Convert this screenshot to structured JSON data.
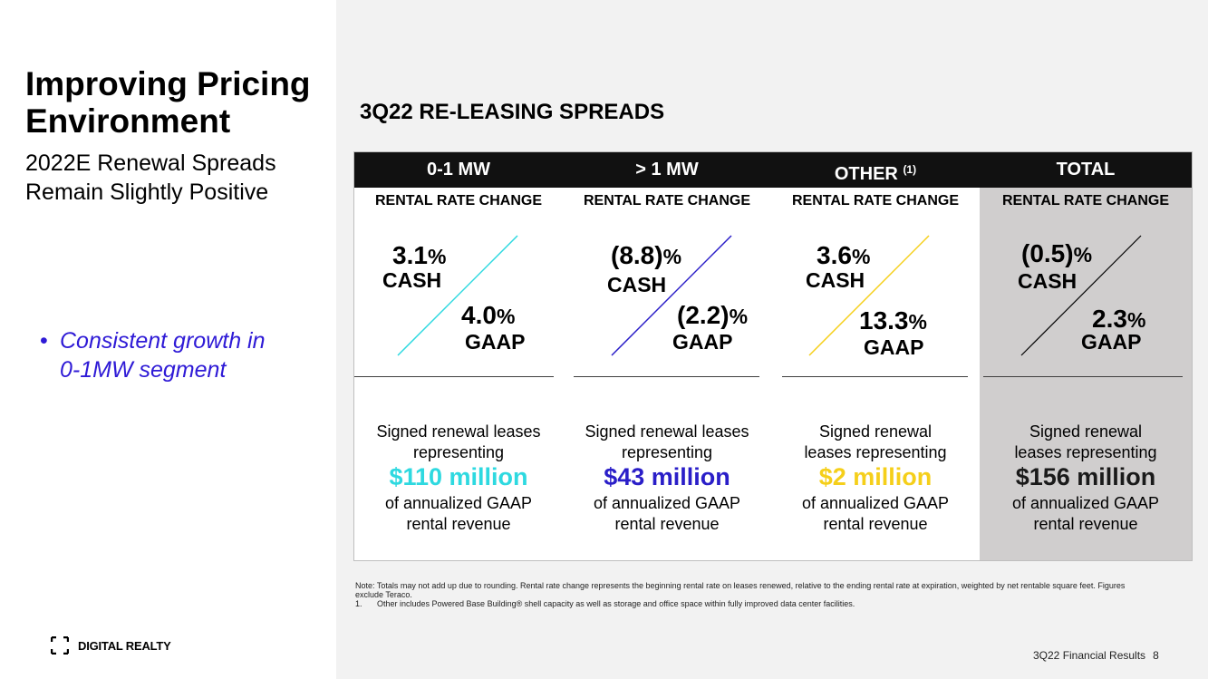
{
  "left": {
    "title_line1": "Improving Pricing",
    "title_line2": "Environment",
    "subtitle_line1": "2022E Renewal Spreads",
    "subtitle_line2": "Remain Slightly Positive",
    "bullet_marker": "•",
    "bullet_line1": "Consistent growth in",
    "bullet_line2": "0-1MW segment"
  },
  "logo": {
    "text": "DIGITAL REALTY",
    "mark": "bracket-logo-icon"
  },
  "section_title": "3Q22 RE-LEASING SPREADS",
  "columns": [
    {
      "header": "0-1 MW",
      "header_sup": "",
      "subheader": "RENTAL RATE CHANGE",
      "cash_value": "3.1",
      "cash_label": "CASH",
      "gaap_value": "4.0",
      "gaap_label": "GAAP",
      "percent": "%",
      "line_color": "#2ed9e0",
      "desc_line1": "Signed renewal leases",
      "desc_line2": "representing",
      "amount": "$110 million",
      "amount_color": "#2ed9e0",
      "desc_line3": "of annualized GAAP",
      "desc_line4": "rental revenue"
    },
    {
      "header": "> 1 MW",
      "header_sup": "",
      "subheader": "RENTAL RATE CHANGE",
      "cash_value": "(8.8)",
      "cash_label": "CASH",
      "gaap_value": "(2.2)",
      "gaap_label": "GAAP",
      "percent": "%",
      "line_color": "#2a1ec8",
      "desc_line1": "Signed renewal leases",
      "desc_line2": "representing",
      "amount": "$43 million",
      "amount_color": "#2a1ec8",
      "desc_line3": "of annualized GAAP",
      "desc_line4": "rental revenue"
    },
    {
      "header": "OTHER",
      "header_sup": "(1)",
      "subheader": "RENTAL RATE CHANGE",
      "cash_value": "3.6",
      "cash_label": "CASH",
      "gaap_value": "13.3",
      "gaap_label": "GAAP",
      "percent": "%",
      "line_color": "#f5cf1a",
      "desc_line1": "Signed renewal",
      "desc_line2": "leases representing",
      "amount": "$2 million",
      "amount_color": "#f5cf1a",
      "desc_line3": "of annualized GAAP",
      "desc_line4": "rental revenue"
    },
    {
      "header": "TOTAL",
      "header_sup": "",
      "subheader": "RENTAL RATE CHANGE",
      "cash_value": "(0.5)",
      "cash_label": "CASH",
      "gaap_value": "2.3",
      "gaap_label": "GAAP",
      "percent": "%",
      "line_color": "#000000",
      "desc_line1": "Signed renewal",
      "desc_line2": "leases representing",
      "amount": "$156 million",
      "amount_color": "#1a1a1a",
      "desc_line3": "of annualized GAAP",
      "desc_line4": "rental revenue"
    }
  ],
  "note": {
    "line1": "Note:  Totals may not add up due to rounding. Rental rate change represents the beginning rental rate on leases renewed, relative to the ending rental rate at expiration, weighted by net rentable square feet. Figures exclude Teraco.",
    "item1_num": "1.",
    "item1_text": "Other includes Powered Base Building® shell capacity as well as storage and office space within fully improved data center facilities."
  },
  "footer": {
    "label": "3Q22 Financial Results",
    "page": "8"
  }
}
